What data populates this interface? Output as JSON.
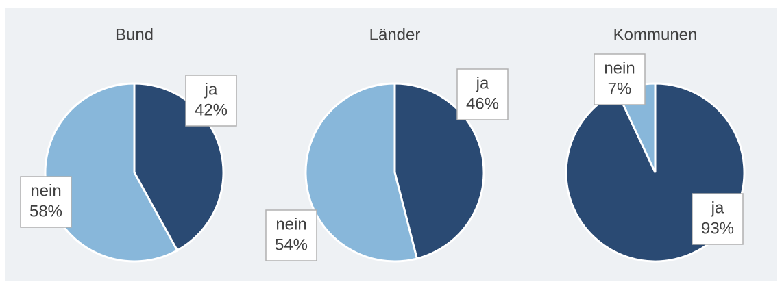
{
  "chart_data": [
    {
      "type": "pie",
      "title": "Bund",
      "categories": [
        "ja",
        "nein"
      ],
      "values": [
        42,
        58
      ],
      "value_labels": [
        "42%",
        "58%"
      ],
      "colors": [
        "#2a4a73",
        "#88b7da"
      ]
    },
    {
      "type": "pie",
      "title": "Länder",
      "categories": [
        "ja",
        "nein"
      ],
      "values": [
        46,
        54
      ],
      "value_labels": [
        "46%",
        "54%"
      ],
      "colors": [
        "#2a4a73",
        "#88b7da"
      ]
    },
    {
      "type": "pie",
      "title": "Kommunen",
      "categories": [
        "ja",
        "nein"
      ],
      "values": [
        93,
        7
      ],
      "value_labels": [
        "93%",
        "7%"
      ],
      "colors": [
        "#2a4a73",
        "#88b7da"
      ]
    }
  ]
}
